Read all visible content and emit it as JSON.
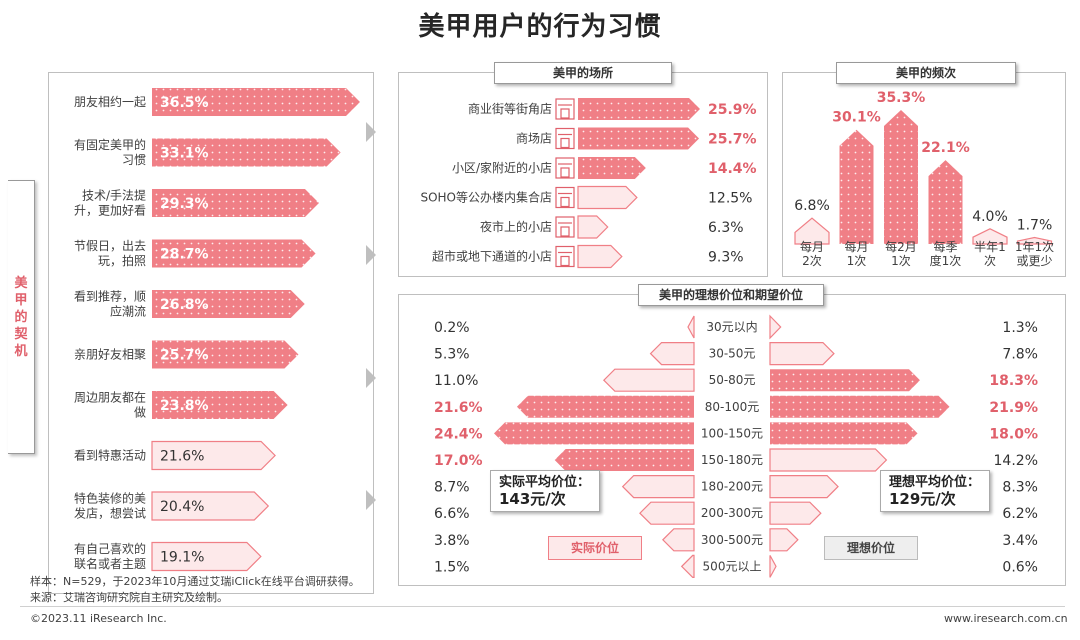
{
  "title": "美甲用户的行为习惯",
  "motivation": {
    "side_title": "美甲的契机",
    "items": [
      {
        "label": "朋友相约一起",
        "value": "36.5%",
        "pct": 36.5,
        "highlight": true
      },
      {
        "label": "有固定美甲的\n习惯",
        "value": "33.1%",
        "pct": 33.1,
        "highlight": true
      },
      {
        "label": "技术/手法提\n升，更加好看",
        "value": "29.3%",
        "pct": 29.3,
        "highlight": true
      },
      {
        "label": "节假日，出去\n玩，拍照",
        "value": "28.7%",
        "pct": 28.7,
        "highlight": true
      },
      {
        "label": "看到推荐，顺\n应潮流",
        "value": "26.8%",
        "pct": 26.8,
        "highlight": true
      },
      {
        "label": "亲朋好友相聚",
        "value": "25.7%",
        "pct": 25.7,
        "highlight": true
      },
      {
        "label": "周边朋友都在\n做",
        "value": "23.8%",
        "pct": 23.8,
        "highlight": true
      },
      {
        "label": "看到特惠活动",
        "value": "21.6%",
        "pct": 21.6,
        "highlight": false
      },
      {
        "label": "特色装修的美\n发店，想尝试",
        "value": "20.4%",
        "pct": 20.4,
        "highlight": false
      },
      {
        "label": "有自己喜欢的\n联名或者主题",
        "value": "19.1%",
        "pct": 19.1,
        "highlight": false
      }
    ]
  },
  "places": {
    "title": "美甲的场所",
    "items": [
      {
        "label": "商业街等街角店",
        "value": "25.9%",
        "pct": 25.9,
        "highlight": true,
        "icon": "storefront-icon"
      },
      {
        "label": "商场店",
        "value": "25.7%",
        "pct": 25.7,
        "highlight": true,
        "icon": "mall-icon"
      },
      {
        "label": "小区/家附近的小店",
        "value": "14.4%",
        "pct": 14.4,
        "highlight": true,
        "icon": "house-icon"
      },
      {
        "label": "SOHO等公办楼内集合店",
        "value": "12.5%",
        "pct": 12.5,
        "highlight": false,
        "icon": "office-building-icon"
      },
      {
        "label": "夜市上的小店",
        "value": "6.3%",
        "pct": 6.3,
        "highlight": false,
        "icon": "night-market-stall-icon"
      },
      {
        "label": "超市或地下通道的小店",
        "value": "9.3%",
        "pct": 9.3,
        "highlight": false,
        "icon": "supermarket-icon"
      }
    ]
  },
  "frequency": {
    "title": "美甲的频次",
    "items": [
      {
        "label": "每月\n2次",
        "value": "6.8%",
        "pct": 6.8,
        "highlight": false
      },
      {
        "label": "每月\n1次",
        "value": "30.1%",
        "pct": 30.1,
        "highlight": true
      },
      {
        "label": "每2月\n1次",
        "value": "35.3%",
        "pct": 35.3,
        "highlight": true
      },
      {
        "label": "每季\n度1次",
        "value": "22.1%",
        "pct": 22.1,
        "highlight": true
      },
      {
        "label": "半年1\n次",
        "value": "4.0%",
        "pct": 4.0,
        "highlight": false
      },
      {
        "label": "1年1次\n或更少",
        "value": "1.7%",
        "pct": 1.7,
        "highlight": false
      }
    ]
  },
  "price": {
    "title": "美甲的理想价位和期望价位",
    "rows": [
      {
        "range": "30元以内",
        "actual": "0.2%",
        "actual_pct": 0.2,
        "actual_hl": false,
        "ideal": "1.3%",
        "ideal_pct": 1.3,
        "ideal_hl": false
      },
      {
        "range": "30-50元",
        "actual": "5.3%",
        "actual_pct": 5.3,
        "actual_hl": false,
        "ideal": "7.8%",
        "ideal_pct": 7.8,
        "ideal_hl": false
      },
      {
        "range": "50-80元",
        "actual": "11.0%",
        "actual_pct": 11.0,
        "actual_hl": false,
        "ideal": "18.3%",
        "ideal_pct": 18.3,
        "ideal_hl": true
      },
      {
        "range": "80-100元",
        "actual": "21.6%",
        "actual_pct": 21.6,
        "actual_hl": true,
        "ideal": "21.9%",
        "ideal_pct": 21.9,
        "ideal_hl": true
      },
      {
        "range": "100-150元",
        "actual": "24.4%",
        "actual_pct": 24.4,
        "actual_hl": true,
        "ideal": "18.0%",
        "ideal_pct": 18.0,
        "ideal_hl": true
      },
      {
        "range": "150-180元",
        "actual": "17.0%",
        "actual_pct": 17.0,
        "actual_hl": true,
        "ideal": "14.2%",
        "ideal_pct": 14.2,
        "ideal_hl": false
      },
      {
        "range": "180-200元",
        "actual": "8.7%",
        "actual_pct": 8.7,
        "actual_hl": false,
        "ideal": "8.3%",
        "ideal_pct": 8.3,
        "ideal_hl": false
      },
      {
        "range": "200-300元",
        "actual": "6.6%",
        "actual_pct": 6.6,
        "actual_hl": false,
        "ideal": "6.2%",
        "ideal_pct": 6.2,
        "ideal_hl": false
      },
      {
        "range": "300-500元",
        "actual": "3.8%",
        "actual_pct": 3.8,
        "actual_hl": false,
        "ideal": "3.4%",
        "ideal_pct": 3.4,
        "ideal_hl": false
      },
      {
        "range": "500元以上",
        "actual": "1.5%",
        "actual_pct": 1.5,
        "actual_hl": false,
        "ideal": "0.6%",
        "ideal_pct": 0.6,
        "ideal_hl": false
      }
    ],
    "actual_avg_label": "实际平均价位：",
    "actual_avg_value": "143元/次",
    "ideal_avg_label": "理想平均价位：",
    "ideal_avg_value": "129元/次",
    "legend_actual": "实际价位",
    "legend_ideal": "理想价位"
  },
  "colors": {
    "accent": "#f07f86",
    "accent_text": "#e0606b",
    "light_fill": "#fde9ea",
    "light_stroke": "#f07f86"
  },
  "footer": {
    "sample": "样本：N=529，于2023年10月通过艾瑞iClick在线平台调研获得。",
    "source": "来源：艾瑞咨询研究院自主研究及绘制。",
    "copyright": "©2023.11 iResearch Inc.",
    "website": "www.iresearch.com.cn"
  },
  "chart_data": [
    {
      "type": "bar",
      "title": "美甲的契机",
      "categories": [
        "朋友相约一起",
        "有固定美甲的习惯",
        "技术/手法提升，更加好看",
        "节假日，出去玩，拍照",
        "看到推荐，顺应潮流",
        "亲朋好友相聚",
        "周边朋友都在做",
        "看到特惠活动",
        "特色装修的美发店，想尝试",
        "有自己喜欢的联名或者主题"
      ],
      "values": [
        36.5,
        33.1,
        29.3,
        28.7,
        26.8,
        25.7,
        23.8,
        21.6,
        20.4,
        19.1
      ],
      "unit": "%"
    },
    {
      "type": "bar",
      "title": "美甲的场所",
      "categories": [
        "商业街等街角店",
        "商场店",
        "小区/家附近的小店",
        "SOHO等公办楼内集合店",
        "夜市上的小店",
        "超市或地下通道的小店"
      ],
      "values": [
        25.9,
        25.7,
        14.4,
        12.5,
        6.3,
        9.3
      ],
      "unit": "%"
    },
    {
      "type": "bar",
      "title": "美甲的频次",
      "categories": [
        "每月2次",
        "每月1次",
        "每2月1次",
        "每季度1次",
        "半年1次",
        "1年1次或更少"
      ],
      "values": [
        6.8,
        30.1,
        35.3,
        22.1,
        4.0,
        1.7
      ],
      "unit": "%"
    },
    {
      "type": "bar",
      "title": "美甲的理想价位和期望价位",
      "categories": [
        "30元以内",
        "30-50元",
        "50-80元",
        "80-100元",
        "100-150元",
        "150-180元",
        "180-200元",
        "200-300元",
        "300-500元",
        "500元以上"
      ],
      "series": [
        {
          "name": "实际价位",
          "values": [
            0.2,
            5.3,
            11.0,
            21.6,
            24.4,
            17.0,
            8.7,
            6.6,
            3.8,
            1.5
          ]
        },
        {
          "name": "理想价位",
          "values": [
            1.3,
            7.8,
            18.3,
            21.9,
            18.0,
            14.2,
            8.3,
            6.2,
            3.4,
            0.6
          ]
        }
      ],
      "unit": "%"
    }
  ]
}
